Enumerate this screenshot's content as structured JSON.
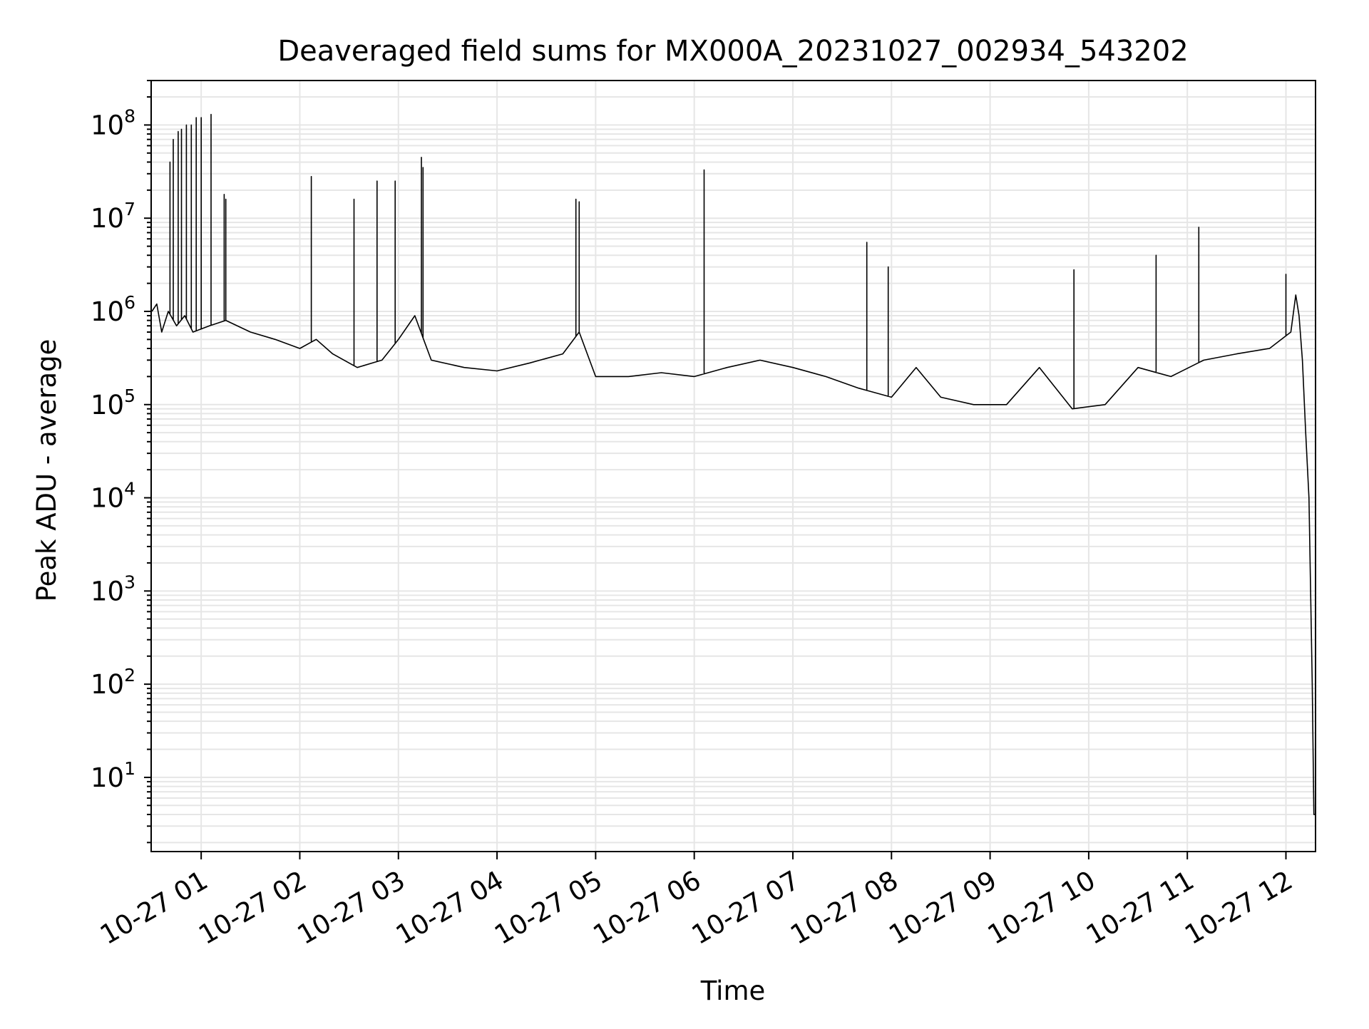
{
  "chart_data": {
    "type": "line",
    "title": "Deaveraged field sums for MX000A_20231027_002934_543202",
    "xlabel": "Time",
    "ylabel": "Peak ADU - average",
    "yscale": "log",
    "ylim": [
      1.6,
      300000000
    ],
    "xlim": [
      "2023-10-27 00:29:34",
      "2023-10-27 12:18:00"
    ],
    "grid": true,
    "line_color": "#000000",
    "grid_color": "#e6e6e6",
    "x_ticks": [
      {
        "label": "10-27 01",
        "time": "2023-10-27 01:00"
      },
      {
        "label": "10-27 02",
        "time": "2023-10-27 02:00"
      },
      {
        "label": "10-27 03",
        "time": "2023-10-27 03:00"
      },
      {
        "label": "10-27 04",
        "time": "2023-10-27 04:00"
      },
      {
        "label": "10-27 05",
        "time": "2023-10-27 05:00"
      },
      {
        "label": "10-27 06",
        "time": "2023-10-27 06:00"
      },
      {
        "label": "10-27 07",
        "time": "2023-10-27 07:00"
      },
      {
        "label": "10-27 08",
        "time": "2023-10-27 08:00"
      },
      {
        "label": "10-27 09",
        "time": "2023-10-27 09:00"
      },
      {
        "label": "10-27 10",
        "time": "2023-10-27 10:00"
      },
      {
        "label": "10-27 11",
        "time": "2023-10-27 11:00"
      },
      {
        "label": "10-27 12",
        "time": "2023-10-27 12:00"
      }
    ],
    "y_ticks": [
      {
        "base": "10",
        "exp": "1",
        "value": 10
      },
      {
        "base": "10",
        "exp": "2",
        "value": 100
      },
      {
        "base": "10",
        "exp": "3",
        "value": 1000
      },
      {
        "base": "10",
        "exp": "4",
        "value": 10000
      },
      {
        "base": "10",
        "exp": "5",
        "value": 100000
      },
      {
        "base": "10",
        "exp": "6",
        "value": 1000000
      },
      {
        "base": "10",
        "exp": "7",
        "value": 10000000
      },
      {
        "base": "10",
        "exp": "8",
        "value": 100000000
      }
    ],
    "series": [
      {
        "points": [
          [
            "2023-10-27 00:30",
            1000000
          ],
          [
            "2023-10-27 00:33",
            1200000
          ],
          [
            "2023-10-27 00:36",
            600000
          ],
          [
            "2023-10-27 00:40",
            1000000
          ],
          [
            "2023-10-27 00:45",
            700000
          ],
          [
            "2023-10-27 00:50",
            900000
          ],
          [
            "2023-10-27 00:55",
            600000
          ],
          [
            "2023-10-27 01:05",
            700000
          ],
          [
            "2023-10-27 01:15",
            800000
          ],
          [
            "2023-10-27 01:30",
            600000
          ],
          [
            "2023-10-27 01:45",
            500000
          ],
          [
            "2023-10-27 02:00",
            400000
          ],
          [
            "2023-10-27 02:10",
            500000
          ],
          [
            "2023-10-27 02:20",
            350000
          ],
          [
            "2023-10-27 02:35",
            250000
          ],
          [
            "2023-10-27 02:50",
            300000
          ],
          [
            "2023-10-27 03:00",
            500000
          ],
          [
            "2023-10-27 03:10",
            900000
          ],
          [
            "2023-10-27 03:20",
            300000
          ],
          [
            "2023-10-27 03:40",
            250000
          ],
          [
            "2023-10-27 04:00",
            230000
          ],
          [
            "2023-10-27 04:20",
            280000
          ],
          [
            "2023-10-27 04:40",
            350000
          ],
          [
            "2023-10-27 04:50",
            600000
          ],
          [
            "2023-10-27 05:00",
            200000
          ],
          [
            "2023-10-27 05:20",
            200000
          ],
          [
            "2023-10-27 05:40",
            220000
          ],
          [
            "2023-10-27 06:00",
            200000
          ],
          [
            "2023-10-27 06:20",
            250000
          ],
          [
            "2023-10-27 06:40",
            300000
          ],
          [
            "2023-10-27 07:00",
            250000
          ],
          [
            "2023-10-27 07:20",
            200000
          ],
          [
            "2023-10-27 07:40",
            150000
          ],
          [
            "2023-10-27 08:00",
            120000
          ],
          [
            "2023-10-27 08:15",
            250000
          ],
          [
            "2023-10-27 08:30",
            120000
          ],
          [
            "2023-10-27 08:50",
            100000
          ],
          [
            "2023-10-27 09:10",
            100000
          ],
          [
            "2023-10-27 09:30",
            250000
          ],
          [
            "2023-10-27 09:50",
            90000
          ],
          [
            "2023-10-27 10:10",
            100000
          ],
          [
            "2023-10-27 10:30",
            250000
          ],
          [
            "2023-10-27 10:50",
            200000
          ],
          [
            "2023-10-27 11:10",
            300000
          ],
          [
            "2023-10-27 11:30",
            350000
          ],
          [
            "2023-10-27 11:50",
            400000
          ],
          [
            "2023-10-27 12:03",
            600000
          ],
          [
            "2023-10-27 12:06",
            1500000
          ],
          [
            "2023-10-27 12:08",
            900000
          ],
          [
            "2023-10-27 12:10",
            300000
          ],
          [
            "2023-10-27 12:12",
            50000
          ],
          [
            "2023-10-27 12:14",
            10000
          ],
          [
            "2023-10-27 12:16",
            100
          ],
          [
            "2023-10-27 12:17",
            4
          ],
          [
            "2023-10-27 12:18",
            4
          ]
        ],
        "spikes": [
          [
            "2023-10-27 00:41",
            40000000
          ],
          [
            "2023-10-27 00:43",
            70000000
          ],
          [
            "2023-10-27 00:46",
            85000000
          ],
          [
            "2023-10-27 00:48",
            90000000
          ],
          [
            "2023-10-27 00:51",
            100000000
          ],
          [
            "2023-10-27 00:54",
            100000000
          ],
          [
            "2023-10-27 00:57",
            120000000
          ],
          [
            "2023-10-27 01:00",
            120000000
          ],
          [
            "2023-10-27 01:06",
            130000000
          ],
          [
            "2023-10-27 01:14",
            18000000
          ],
          [
            "2023-10-27 01:15",
            16000000
          ],
          [
            "2023-10-27 02:07",
            28000000
          ],
          [
            "2023-10-27 02:33",
            16000000
          ],
          [
            "2023-10-27 02:47",
            25000000
          ],
          [
            "2023-10-27 02:58",
            25000000
          ],
          [
            "2023-10-27 03:14",
            45000000
          ],
          [
            "2023-10-27 03:15",
            35000000
          ],
          [
            "2023-10-27 04:48",
            16000000
          ],
          [
            "2023-10-27 04:50",
            15000000
          ],
          [
            "2023-10-27 06:06",
            33000000
          ],
          [
            "2023-10-27 07:45",
            5500000
          ],
          [
            "2023-10-27 07:58",
            3000000
          ],
          [
            "2023-10-27 09:51",
            2800000
          ],
          [
            "2023-10-27 10:41",
            4000000
          ],
          [
            "2023-10-27 11:07",
            8000000
          ],
          [
            "2023-10-27 12:00",
            2500000
          ]
        ]
      }
    ]
  }
}
